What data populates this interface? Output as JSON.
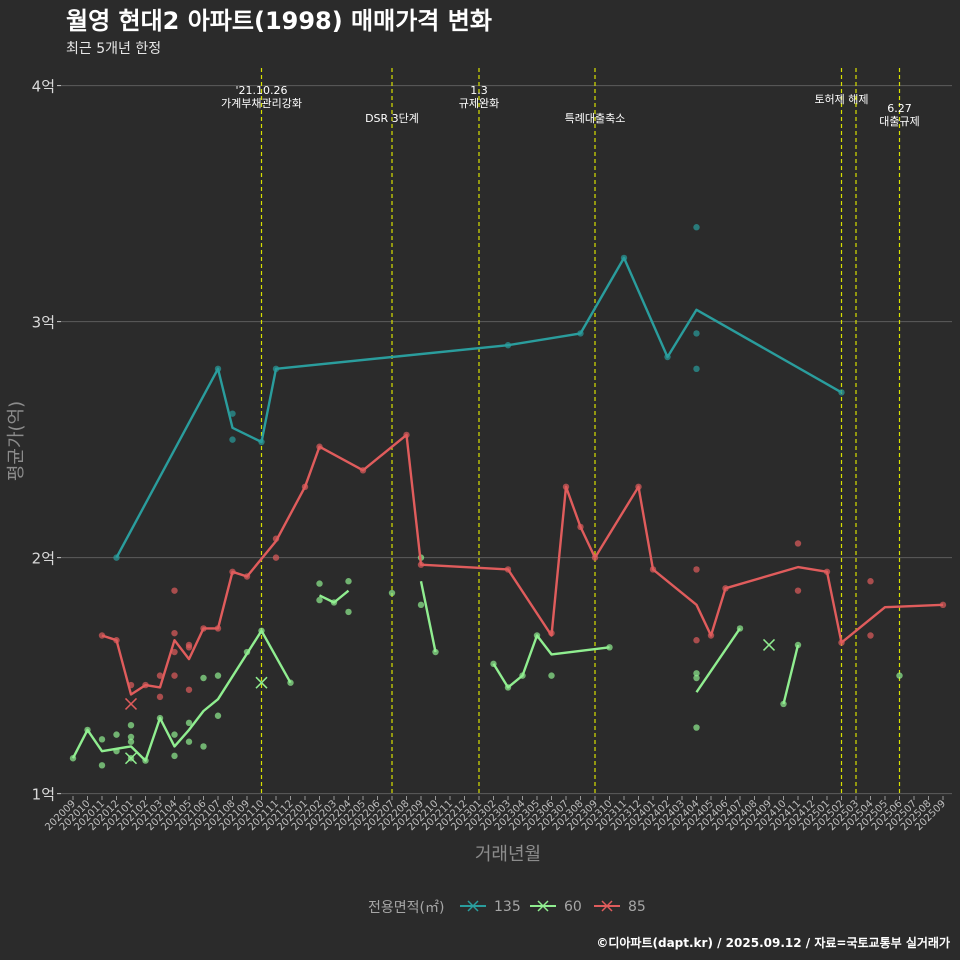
{
  "chart_data": {
    "type": "line",
    "title": "월영 현대2 아파트(1998) 매매가격 변화",
    "subtitle": "최근 5개년 한정",
    "xlabel": "거래년월",
    "ylabel": "평균가(억)",
    "caption": "©디아파트(dapt.kr) / 2025.09.12 / 자료=국토교통부 실거래가",
    "legend_title": "전용면적(㎡)",
    "legend_position": "bottom",
    "ylim": [
      0.99,
      4.1
    ],
    "y_ticks": [
      1,
      2,
      3,
      4
    ],
    "y_tick_labels": [
      "1억",
      "2억",
      "3억",
      "4억"
    ],
    "categories": [
      "202009",
      "202010",
      "202011",
      "202012",
      "202101",
      "202102",
      "202103",
      "202104",
      "202105",
      "202106",
      "202107",
      "202108",
      "202109",
      "202110",
      "202111",
      "202112",
      "202201",
      "202202",
      "202203",
      "202204",
      "202205",
      "202206",
      "202207",
      "202208",
      "202209",
      "202210",
      "202211",
      "202212",
      "202301",
      "202302",
      "202303",
      "202304",
      "202305",
      "202306",
      "202307",
      "202308",
      "202309",
      "202310",
      "202311",
      "202312",
      "202401",
      "202402",
      "202403",
      "202404",
      "202405",
      "202406",
      "202407",
      "202408",
      "202409",
      "202410",
      "202411",
      "202412",
      "202501",
      "202502",
      "202503",
      "202504",
      "202505",
      "202506",
      "202507",
      "202508",
      "202509"
    ],
    "events": [
      {
        "x": 13.0,
        "lines": [
          "'21.10.26",
          "가계부채관리강화"
        ],
        "row": 0
      },
      {
        "x": 22.0,
        "lines": [
          "DSR 3단계"
        ],
        "row": 2
      },
      {
        "x": 28.0,
        "lines": [
          "1.3",
          "규제완화"
        ],
        "row": 0
      },
      {
        "x": 36.0,
        "lines": [
          "특례대출축소"
        ],
        "row": 2
      },
      {
        "x": 53.0,
        "lines": [
          "토허제 해제"
        ],
        "row": 1
      },
      {
        "x": 54.0,
        "lines": [],
        "row": 1
      },
      {
        "x": 57.0,
        "lines": [
          "6.27",
          "대출규제"
        ],
        "row": 1.5
      }
    ],
    "series": [
      {
        "name": "135",
        "color": "#2a9d9d",
        "line": [
          [
            3,
            2.0
          ],
          [
            10,
            2.8
          ],
          [
            11,
            2.55
          ],
          [
            13,
            2.49
          ],
          [
            14,
            2.8
          ],
          [
            30,
            2.9
          ],
          [
            35,
            2.95
          ],
          [
            38,
            3.27
          ],
          [
            41,
            2.85
          ],
          [
            43,
            3.05
          ],
          [
            53,
            2.7
          ]
        ],
        "points": [
          [
            3,
            2.0
          ],
          [
            10,
            2.8
          ],
          [
            11,
            2.61
          ],
          [
            11,
            2.5
          ],
          [
            13,
            2.49
          ],
          [
            14,
            2.8
          ],
          [
            30,
            2.9
          ],
          [
            35,
            2.95
          ],
          [
            38,
            3.27
          ],
          [
            41,
            2.85
          ],
          [
            43,
            3.4
          ],
          [
            43,
            2.95
          ],
          [
            43,
            2.8
          ],
          [
            53,
            2.7
          ]
        ],
        "cross": []
      },
      {
        "name": "60",
        "color": "#90ee90",
        "line": [
          [
            0,
            1.15
          ],
          [
            1,
            1.27
          ],
          [
            2,
            1.18
          ],
          [
            4,
            1.2
          ],
          [
            5,
            1.14
          ],
          [
            6,
            1.32
          ],
          [
            7,
            1.2
          ],
          [
            8,
            1.27
          ],
          [
            9,
            1.35
          ],
          [
            10,
            1.4
          ],
          [
            13,
            1.69
          ],
          [
            15,
            1.47
          ]
        ],
        "line2": [
          [
            17,
            1.84
          ],
          [
            18,
            1.81
          ],
          [
            19,
            1.86
          ]
        ],
        "line3": [
          [
            24,
            1.9
          ],
          [
            25,
            1.6
          ]
        ],
        "line4": [
          [
            29,
            1.55
          ],
          [
            30,
            1.45
          ],
          [
            31,
            1.5
          ],
          [
            32,
            1.67
          ],
          [
            33,
            1.59
          ],
          [
            37,
            1.62
          ]
        ],
        "line5": [
          [
            43,
            1.43
          ],
          [
            46,
            1.7
          ]
        ],
        "line6": [
          [
            49,
            1.38
          ],
          [
            50,
            1.63
          ]
        ],
        "points": [
          [
            0,
            1.15
          ],
          [
            1,
            1.27
          ],
          [
            2,
            1.12
          ],
          [
            2,
            1.23
          ],
          [
            3,
            1.18
          ],
          [
            3,
            1.25
          ],
          [
            4,
            1.15
          ],
          [
            4,
            1.24
          ],
          [
            4,
            1.29
          ],
          [
            4,
            1.22
          ],
          [
            5,
            1.14
          ],
          [
            6,
            1.32
          ],
          [
            7,
            1.16
          ],
          [
            7,
            1.25
          ],
          [
            8,
            1.22
          ],
          [
            8,
            1.3
          ],
          [
            9,
            1.2
          ],
          [
            9,
            1.49
          ],
          [
            10,
            1.33
          ],
          [
            10,
            1.5
          ],
          [
            12,
            1.6
          ],
          [
            13,
            1.69
          ],
          [
            15,
            1.47
          ],
          [
            17,
            1.89
          ],
          [
            17,
            1.82
          ],
          [
            18,
            1.81
          ],
          [
            19,
            1.9
          ],
          [
            19,
            1.77
          ],
          [
            22,
            1.85
          ],
          [
            24,
            2.0
          ],
          [
            24,
            1.8
          ],
          [
            25,
            1.6
          ],
          [
            29,
            1.55
          ],
          [
            30,
            1.45
          ],
          [
            31,
            1.5
          ],
          [
            32,
            1.67
          ],
          [
            33,
            1.5
          ],
          [
            37,
            1.62
          ],
          [
            43,
            1.51
          ],
          [
            43,
            1.49
          ],
          [
            43,
            1.28
          ],
          [
            46,
            1.7
          ],
          [
            49,
            1.38
          ],
          [
            50,
            1.63
          ],
          [
            57,
            1.5
          ]
        ],
        "cross": [
          [
            4,
            1.15
          ],
          [
            13,
            1.47
          ],
          [
            48,
            1.63
          ]
        ]
      },
      {
        "name": "85",
        "color": "#e05c5c",
        "line": [
          [
            2,
            1.67
          ],
          [
            3,
            1.65
          ],
          [
            4,
            1.42
          ],
          [
            5,
            1.46
          ],
          [
            6,
            1.45
          ],
          [
            7,
            1.65
          ],
          [
            8,
            1.57
          ],
          [
            9,
            1.7
          ],
          [
            10,
            1.7
          ],
          [
            11,
            1.94
          ],
          [
            12,
            1.92
          ],
          [
            14,
            2.07
          ],
          [
            16,
            2.3
          ],
          [
            17,
            2.47
          ],
          [
            20,
            2.37
          ],
          [
            23,
            2.52
          ],
          [
            24,
            1.97
          ],
          [
            30,
            1.95
          ],
          [
            33,
            1.67
          ],
          [
            34,
            2.3
          ],
          [
            35,
            2.13
          ],
          [
            36,
            2.0
          ],
          [
            39,
            2.3
          ],
          [
            40,
            1.95
          ],
          [
            43,
            1.8
          ],
          [
            44,
            1.67
          ],
          [
            45,
            1.87
          ],
          [
            50,
            1.96
          ],
          [
            52,
            1.94
          ],
          [
            53,
            1.64
          ],
          [
            56,
            1.79
          ],
          [
            60,
            1.8
          ]
        ],
        "points": [
          [
            2,
            1.67
          ],
          [
            3,
            1.65
          ],
          [
            4,
            1.46
          ],
          [
            5,
            1.46
          ],
          [
            6,
            1.41
          ],
          [
            6,
            1.5
          ],
          [
            7,
            1.86
          ],
          [
            7,
            1.68
          ],
          [
            7,
            1.5
          ],
          [
            7,
            1.6
          ],
          [
            8,
            1.62
          ],
          [
            8,
            1.44
          ],
          [
            8,
            1.63
          ],
          [
            9,
            1.7
          ],
          [
            10,
            1.7
          ],
          [
            11,
            1.94
          ],
          [
            12,
            1.92
          ],
          [
            14,
            2.08
          ],
          [
            14,
            2.0
          ],
          [
            16,
            2.3
          ],
          [
            17,
            2.47
          ],
          [
            20,
            2.37
          ],
          [
            23,
            2.52
          ],
          [
            24,
            1.97
          ],
          [
            30,
            1.95
          ],
          [
            33,
            1.68
          ],
          [
            34,
            2.3
          ],
          [
            35,
            2.13
          ],
          [
            36,
            2.0
          ],
          [
            39,
            2.3
          ],
          [
            40,
            1.95
          ],
          [
            43,
            1.95
          ],
          [
            43,
            1.65
          ],
          [
            44,
            1.67
          ],
          [
            45,
            1.87
          ],
          [
            50,
            2.06
          ],
          [
            50,
            1.86
          ],
          [
            52,
            1.94
          ],
          [
            53,
            1.64
          ],
          [
            55,
            1.9
          ],
          [
            55,
            1.67
          ],
          [
            60,
            1.8
          ]
        ],
        "cross": [
          [
            4,
            1.38
          ]
        ]
      }
    ]
  }
}
